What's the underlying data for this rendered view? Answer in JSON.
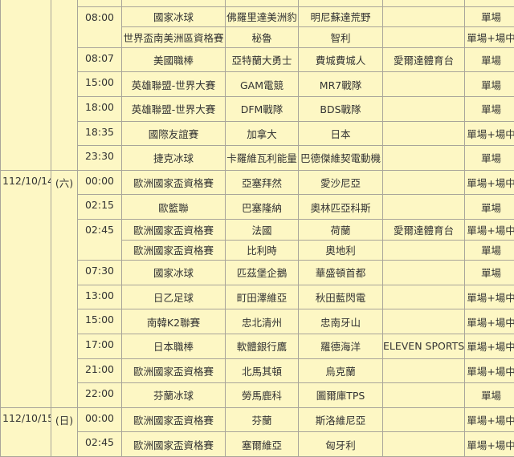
{
  "colors": {
    "background": "#fdf7c4",
    "border": "#a9a59a",
    "text": "#333333"
  },
  "days": [
    {
      "date": "",
      "weekday": "",
      "slots": [
        {
          "time": "",
          "matches": [
            {
              "league": "",
              "home": "",
              "away": "",
              "channel": "",
              "type": ""
            }
          ]
        },
        {
          "time": "08:00",
          "matches": [
            {
              "league": "國家冰球",
              "home": "佛羅里達美洲豹",
              "away": "明尼蘇達荒野",
              "channel": "",
              "type": "單場"
            },
            {
              "league": "世界盃南美洲區資格賽",
              "home": "秘魯",
              "away": "智利",
              "channel": "",
              "type": "單場+場中"
            }
          ]
        },
        {
          "time": "08:07",
          "matches": [
            {
              "league": "美國職棒",
              "home": "亞特蘭大勇士",
              "away": "費城費城人",
              "channel": "愛爾達體育台",
              "type": "單場"
            }
          ]
        },
        {
          "time": "15:00",
          "matches": [
            {
              "league": "英雄聯盟-世界大賽",
              "home": "GAM電競",
              "away": "MR7戰隊",
              "channel": "",
              "type": "單場"
            }
          ]
        },
        {
          "time": "18:00",
          "matches": [
            {
              "league": "英雄聯盟-世界大賽",
              "home": "DFM戰隊",
              "away": "BDS戰隊",
              "channel": "",
              "type": "單場"
            }
          ]
        },
        {
          "time": "18:35",
          "matches": [
            {
              "league": "國際友誼賽",
              "home": "加拿大",
              "away": "日本",
              "channel": "",
              "type": "單場+場中"
            }
          ]
        },
        {
          "time": "23:30",
          "matches": [
            {
              "league": "捷克冰球",
              "home": "卡羅維瓦利能量",
              "away": "巴德傑維契電動機",
              "channel": "",
              "type": "單場"
            }
          ]
        }
      ]
    },
    {
      "date": "112/10/14",
      "weekday": "(六)",
      "slots": [
        {
          "time": "00:00",
          "matches": [
            {
              "league": "歐洲國家盃資格賽",
              "home": "亞塞拜然",
              "away": "愛沙尼亞",
              "channel": "",
              "type": "單場+場中"
            }
          ]
        },
        {
          "time": "02:15",
          "matches": [
            {
              "league": "歐籃聯",
              "home": "巴塞隆納",
              "away": "奧林匹亞科斯",
              "channel": "",
              "type": "單場"
            }
          ]
        },
        {
          "time": "02:45",
          "matches": [
            {
              "league": "歐洲國家盃資格賽",
              "home": "法國",
              "away": "荷蘭",
              "channel": "愛爾達體育台",
              "type": "單場+場中"
            },
            {
              "league": "歐洲國家盃資格賽",
              "home": "比利時",
              "away": "奧地利",
              "channel": "",
              "type": "單場"
            }
          ]
        },
        {
          "time": "07:30",
          "matches": [
            {
              "league": "國家冰球",
              "home": "匹茲堡企鵝",
              "away": "華盛頓首都",
              "channel": "",
              "type": "單場"
            }
          ]
        },
        {
          "time": "13:00",
          "matches": [
            {
              "league": "日乙足球",
              "home": "町田澤維亞",
              "away": "秋田藍閃電",
              "channel": "",
              "type": "單場+場中"
            }
          ]
        },
        {
          "time": "15:00",
          "matches": [
            {
              "league": "南韓K2聯賽",
              "home": "忠北清州",
              "away": "忠南牙山",
              "channel": "",
              "type": "單場+場中"
            }
          ]
        },
        {
          "time": "17:00",
          "matches": [
            {
              "league": "日本職棒",
              "home": "軟體銀行鷹",
              "away": "羅德海洋",
              "channel": "ELEVEN SPORTS",
              "type": "單場+場中"
            }
          ]
        },
        {
          "time": "21:00",
          "matches": [
            {
              "league": "歐洲國家盃資格賽",
              "home": "北馬其頓",
              "away": "烏克蘭",
              "channel": "",
              "type": "單場+場中"
            }
          ]
        },
        {
          "time": "22:00",
          "matches": [
            {
              "league": "芬蘭冰球",
              "home": "勞馬鹿科",
              "away": "圖爾庫TPS",
              "channel": "",
              "type": "單場"
            }
          ]
        }
      ]
    },
    {
      "date": "112/10/15",
      "weekday": "(日)",
      "slots": [
        {
          "time": "00:00",
          "matches": [
            {
              "league": "歐洲國家盃資格賽",
              "home": "芬蘭",
              "away": "斯洛維尼亞",
              "channel": "",
              "type": "單場+場中"
            }
          ]
        },
        {
          "time": "02:45",
          "matches": [
            {
              "league": "歐洲國家盃資格賽",
              "home": "塞爾維亞",
              "away": "匈牙利",
              "channel": "",
              "type": "單場+場中"
            }
          ]
        }
      ]
    }
  ]
}
